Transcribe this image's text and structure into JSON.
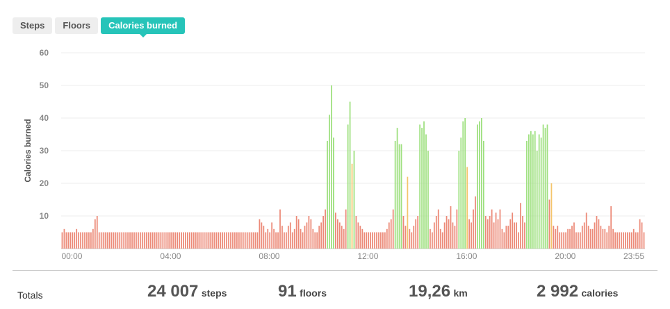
{
  "tabs": [
    {
      "label": "Steps",
      "active": false
    },
    {
      "label": "Floors",
      "active": false
    },
    {
      "label": "Calories burned",
      "active": true
    }
  ],
  "colors": {
    "accent": "#26c4b9",
    "bar_low": "#ec8a78",
    "bar_mid": "#f4c56b",
    "bar_high": "#9ee07f",
    "grid": "#ececec"
  },
  "chart_data": {
    "type": "bar",
    "ylabel": "Calories burned",
    "ylim": [
      0,
      60
    ],
    "yticks": [
      "10",
      "20",
      "30",
      "40",
      "50",
      "60"
    ],
    "x_tick_labels": [
      "00:00",
      "04:00",
      "08:00",
      "12:00",
      "16:00",
      "20:00",
      "23:55"
    ],
    "interval_minutes": 5,
    "values": [
      5,
      6,
      5,
      5,
      5,
      5,
      5,
      6,
      5,
      5,
      5,
      5,
      5,
      5,
      5,
      6,
      9,
      10,
      5,
      5,
      5,
      5,
      5,
      5,
      5,
      5,
      5,
      5,
      5,
      5,
      5,
      5,
      5,
      5,
      5,
      5,
      5,
      5,
      5,
      5,
      5,
      5,
      5,
      5,
      5,
      5,
      5,
      5,
      5,
      5,
      5,
      5,
      5,
      5,
      5,
      5,
      5,
      5,
      5,
      5,
      5,
      5,
      5,
      5,
      5,
      5,
      5,
      5,
      5,
      5,
      5,
      5,
      5,
      5,
      5,
      5,
      5,
      5,
      5,
      5,
      5,
      5,
      5,
      5,
      5,
      5,
      5,
      5,
      5,
      5,
      5,
      5,
      5,
      5,
      5,
      5,
      9,
      8,
      7,
      5,
      6,
      5,
      8,
      6,
      5,
      5,
      12,
      7,
      5,
      5,
      7,
      8,
      5,
      6,
      10,
      9,
      6,
      5,
      7,
      8,
      10,
      9,
      6,
      5,
      5,
      7,
      8,
      10,
      12,
      33,
      41,
      50,
      34,
      11,
      9,
      8,
      7,
      6,
      12,
      38,
      45,
      26,
      30,
      10,
      8,
      7,
      6,
      5,
      5,
      5,
      5,
      5,
      5,
      5,
      5,
      5,
      5,
      5,
      6,
      8,
      9,
      12,
      33,
      37,
      32,
      32,
      10,
      7,
      22,
      6,
      5,
      7,
      9,
      10,
      38,
      37,
      39,
      35,
      30,
      6,
      5,
      8,
      10,
      12,
      6,
      5,
      8,
      10,
      9,
      13,
      8,
      7,
      12,
      30,
      34,
      39,
      40,
      25,
      9,
      8,
      12,
      16,
      38,
      39,
      40,
      33,
      10,
      9,
      10,
      12,
      8,
      11,
      9,
      12,
      6,
      5,
      7,
      7,
      9,
      11,
      8,
      8,
      5,
      14,
      10,
      8,
      33,
      35,
      36,
      35,
      36,
      30,
      35,
      34,
      38,
      37,
      38,
      15,
      20,
      7,
      6,
      7,
      5,
      5,
      5,
      5,
      6,
      6,
      7,
      8,
      5,
      5,
      5,
      7,
      8,
      11,
      7,
      6,
      6,
      8,
      10,
      9,
      7,
      6,
      6,
      5,
      7,
      13,
      6,
      5,
      5,
      5,
      5,
      5,
      5,
      5,
      5,
      5,
      6,
      5,
      5,
      9,
      8,
      5
    ],
    "bar_colors": {
      "low": "#ec8a78",
      "mid": "#f4c56b",
      "high": "#9ee07f"
    },
    "grid": true
  },
  "totals": {
    "label": "Totals",
    "steps_value": "24 007",
    "steps_unit": "steps",
    "floors_value": "91",
    "floors_unit": "floors",
    "distance_value": "19,26",
    "distance_unit": "km",
    "calories_value": "2 992",
    "calories_unit": "calories"
  }
}
